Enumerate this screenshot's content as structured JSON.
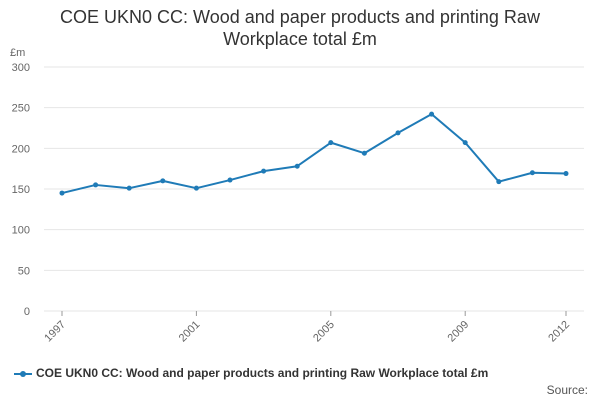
{
  "colors": {
    "series": "#1f7bb7",
    "grid": "#e6e6e6",
    "axis_text": "#666666"
  },
  "chart_data": {
    "type": "line",
    "title_line1": "COE UKN0 CC: Wood and paper products and printing Raw",
    "title_line2": "Workplace total £m",
    "y_unit": "£m",
    "ylim": [
      0,
      300
    ],
    "y_ticks": [
      0,
      50,
      100,
      150,
      200,
      250,
      300
    ],
    "x_tick_labels": [
      "1997",
      "2001",
      "2005",
      "2009",
      "2012"
    ],
    "x": [
      1997,
      1998,
      1999,
      2000,
      2001,
      2002,
      2003,
      2004,
      2005,
      2006,
      2007,
      2008,
      2009,
      2010,
      2011,
      2012
    ],
    "series": [
      {
        "name": "COE UKN0 CC: Wood and paper products and printing Raw Workplace total £m",
        "values": [
          145,
          155,
          151,
          160,
          151,
          161,
          172,
          178,
          207,
          194,
          219,
          242,
          207,
          159,
          170,
          169
        ]
      }
    ],
    "grid": true,
    "legend_position": "bottom-left",
    "source_label": "Source:"
  }
}
